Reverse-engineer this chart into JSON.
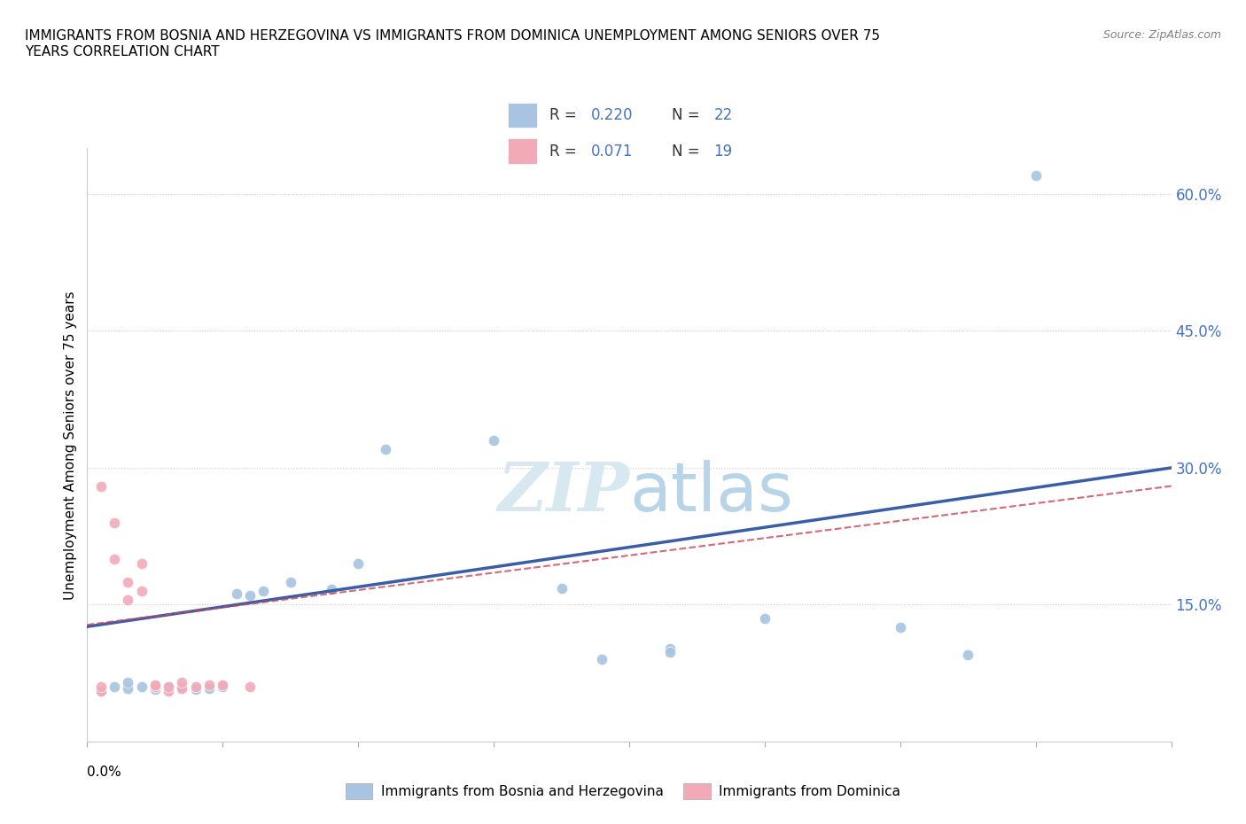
{
  "title_line1": "IMMIGRANTS FROM BOSNIA AND HERZEGOVINA VS IMMIGRANTS FROM DOMINICA UNEMPLOYMENT AMONG SENIORS OVER 75",
  "title_line2": "YEARS CORRELATION CHART",
  "source": "Source: ZipAtlas.com",
  "ylabel": "Unemployment Among Seniors over 75 years",
  "ytick_positions": [
    0.15,
    0.3,
    0.45,
    0.6
  ],
  "ytick_labels": [
    "15.0%",
    "30.0%",
    "45.0%",
    "60.0%"
  ],
  "xmin": 0.0,
  "xmax": 0.08,
  "ymin": 0.0,
  "ymax": 0.65,
  "blue_color": "#a8c4e0",
  "pink_color": "#f2aab8",
  "blue_line_color": "#3a5da8",
  "pink_line_color": "#cc4455",
  "tick_label_color": "#4472c4",
  "watermark_color": "#d8e8f0",
  "blue_scatter_x": [
    0.001,
    0.002,
    0.003,
    0.003,
    0.004,
    0.005,
    0.006,
    0.007,
    0.008,
    0.009,
    0.01,
    0.011,
    0.012,
    0.013,
    0.015,
    0.018,
    0.02,
    0.022,
    0.03,
    0.035,
    0.038,
    0.043,
    0.043,
    0.05,
    0.06,
    0.065,
    0.07
  ],
  "blue_scatter_y": [
    0.055,
    0.06,
    0.058,
    0.065,
    0.06,
    0.057,
    0.06,
    0.06,
    0.057,
    0.058,
    0.06,
    0.162,
    0.16,
    0.165,
    0.175,
    0.167,
    0.195,
    0.32,
    0.33,
    0.168,
    0.09,
    0.102,
    0.098,
    0.135,
    0.125,
    0.095,
    0.62
  ],
  "pink_scatter_x": [
    0.001,
    0.001,
    0.001,
    0.002,
    0.002,
    0.003,
    0.003,
    0.004,
    0.004,
    0.005,
    0.005,
    0.006,
    0.006,
    0.007,
    0.007,
    0.008,
    0.009,
    0.01,
    0.012
  ],
  "pink_scatter_y": [
    0.055,
    0.06,
    0.28,
    0.2,
    0.24,
    0.155,
    0.175,
    0.195,
    0.165,
    0.06,
    0.062,
    0.055,
    0.06,
    0.058,
    0.065,
    0.06,
    0.062,
    0.062,
    0.06
  ],
  "blue_fit_x": [
    0.0,
    0.08
  ],
  "blue_fit_y": [
    0.126,
    0.3
  ],
  "pink_fit_x": [
    0.0,
    0.08
  ],
  "pink_fit_y": [
    0.128,
    0.28
  ]
}
